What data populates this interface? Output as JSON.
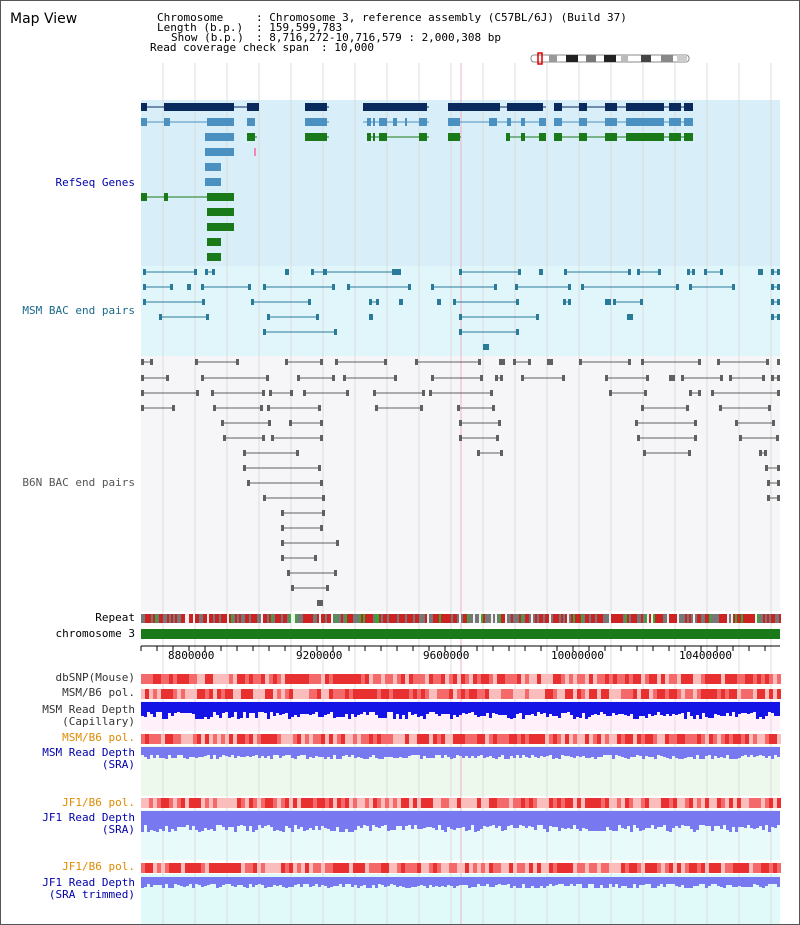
{
  "page": {
    "title": "Map View"
  },
  "info": {
    "chromosome_key": "Chromosome",
    "chromosome_val": ": Chromosome 3, reference assembly (C57BL/6J) (Build 37)",
    "length_key": "Length (b.p.)",
    "length_val": ": 159,599,783",
    "show_key": "Show (b.p.)",
    "show_val": ": 8,716,272-10,716,579 : 2,000,308 bp",
    "span_key": "Read coverage check span",
    "span_val": ": 10,000"
  },
  "tracks": {
    "refseq": "RefSeq Genes",
    "msm_bac": "MSM BAC end pairs",
    "b6n_bac": "B6N BAC end pairs",
    "repeat": "Repeat",
    "chromosome": "chromosome 3",
    "dbsnp": "dbSNP(Mouse)",
    "msm_b6_pol": "MSM/B6 pol.",
    "msm_depth_cap_1": "MSM Read Depth",
    "msm_depth_cap_2": "(Capillary)",
    "msm_b6_pol_2": "MSM/B6 pol.",
    "msm_depth_sra_1": "MSM Read Depth",
    "msm_depth_sra_2": "(SRA)",
    "jf1_b6_pol": "JF1/B6 pol.",
    "jf1_depth_sra_1": "JF1 Read Depth",
    "jf1_depth_sra_2": "(SRA)",
    "jf1_b6_pol_2": "JF1/B6 pol.",
    "jf1_depth_trim_1": "JF1 Read Depth",
    "jf1_depth_trim_2": "(SRA trimmed)"
  },
  "axis": {
    "ticks": [
      "8800000",
      "9200000",
      "9600000",
      "10000000",
      "10400000"
    ]
  },
  "colors": {
    "refseq_bg": "#d8eef8",
    "msm_bg": "#e0f6fa",
    "b6n_bg": "#f6f6f8",
    "gene_dark": "#0a2a5e",
    "gene_mid": "#4a90c0",
    "gene_green": "#1a7a1a",
    "msm_pair": "#2a7a9a",
    "b6n_pair": "#606060",
    "chrom": "#1a7a1a",
    "depth_blue": "#1414e6",
    "depth_light": "#7878f0",
    "label_blue": "#0000aa",
    "label_teal": "#1a6a8a",
    "label_orange": "#e08a00",
    "label_gray": "#555555"
  }
}
